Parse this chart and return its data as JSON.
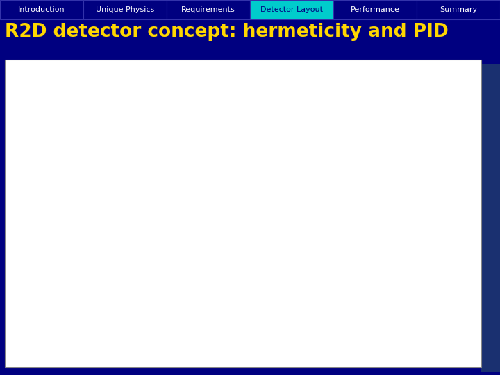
{
  "nav_tabs": [
    "Introduction",
    "Unique Physics",
    "Requirements",
    "Detector Layout",
    "Performance",
    "Summary"
  ],
  "active_tab": "Detector Layout",
  "nav_bg": "#000080",
  "nav_active_bg": "#00CCCC",
  "nav_text_color": "#FFFFFF",
  "nav_active_text_color": "#000080",
  "title": "R2D detector concept: hermeticity and PID",
  "title_color": "#FFD700",
  "slide_bg": "#000080",
  "content_bg": "#FFFFFF",
  "dark_corner_color": "#1A2A6E",
  "tab_border_color": "#3333AA"
}
